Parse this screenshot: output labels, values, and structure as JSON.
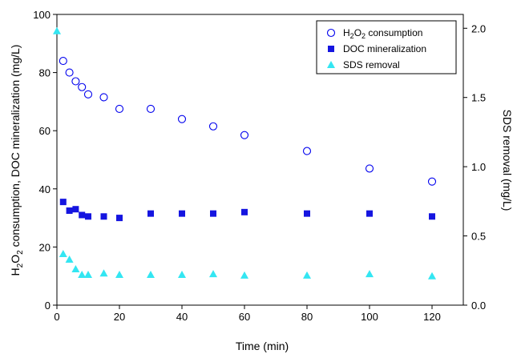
{
  "chart_data": {
    "type": "scatter",
    "xlabel": "Time (min)",
    "ylabel_left": {
      "pre": "H",
      "sub1": "2",
      "mid": "O",
      "sub2": "2",
      "post": " consumption, DOC mineralization (mg/L)"
    },
    "ylabel_right": "SDS removal (mg/L)",
    "xlim": [
      0,
      130
    ],
    "ylim_left": [
      0,
      100
    ],
    "ylim_right": [
      0.0,
      2.1
    ],
    "xticks": [
      0,
      20,
      40,
      60,
      80,
      100,
      120
    ],
    "yticks_left": [
      0,
      20,
      40,
      60,
      80,
      100
    ],
    "yticks_right": [
      "0.0",
      "0.5",
      "1.0",
      "1.5",
      "2.0"
    ],
    "grid": false,
    "legend_position": "top-right",
    "series": [
      {
        "name": "H2O2 consumption",
        "legend": {
          "pre": "H",
          "sub1": "2",
          "mid": "O",
          "sub2": "2",
          "post": " consumption"
        },
        "axis": "left",
        "marker": "open-circle",
        "color": "#0000ee",
        "x": [
          2,
          4,
          6,
          8,
          10,
          15,
          20,
          30,
          40,
          50,
          60,
          80,
          100,
          120
        ],
        "y": [
          84,
          80,
          77,
          75,
          72.5,
          71.5,
          67.5,
          67.5,
          64,
          61.5,
          58.5,
          53,
          47,
          42.5
        ]
      },
      {
        "name": "DOC mineralization",
        "legend": {
          "pre": "DOC mineralization",
          "sub1": "",
          "mid": "",
          "sub2": "",
          "post": ""
        },
        "axis": "left",
        "marker": "filled-square",
        "color": "#1515e0",
        "x": [
          2,
          4,
          6,
          8,
          10,
          15,
          20,
          30,
          40,
          50,
          60,
          80,
          100,
          120
        ],
        "y": [
          35.5,
          32.5,
          33,
          31,
          30.5,
          30.5,
          30,
          31.5,
          31.5,
          31.5,
          32,
          31.5,
          31.5,
          30.5
        ]
      },
      {
        "name": "SDS removal",
        "legend": {
          "pre": "SDS removal",
          "sub1": "",
          "mid": "",
          "sub2": "",
          "post": ""
        },
        "axis": "right",
        "marker": "filled-triangle",
        "color": "#33e6f2",
        "x": [
          0,
          2,
          4,
          6,
          8,
          10,
          15,
          20,
          30,
          40,
          50,
          60,
          80,
          100,
          120
        ],
        "y": [
          1.98,
          0.37,
          0.33,
          0.26,
          0.22,
          0.22,
          0.23,
          0.22,
          0.22,
          0.22,
          0.225,
          0.215,
          0.215,
          0.225,
          0.21
        ]
      }
    ]
  }
}
